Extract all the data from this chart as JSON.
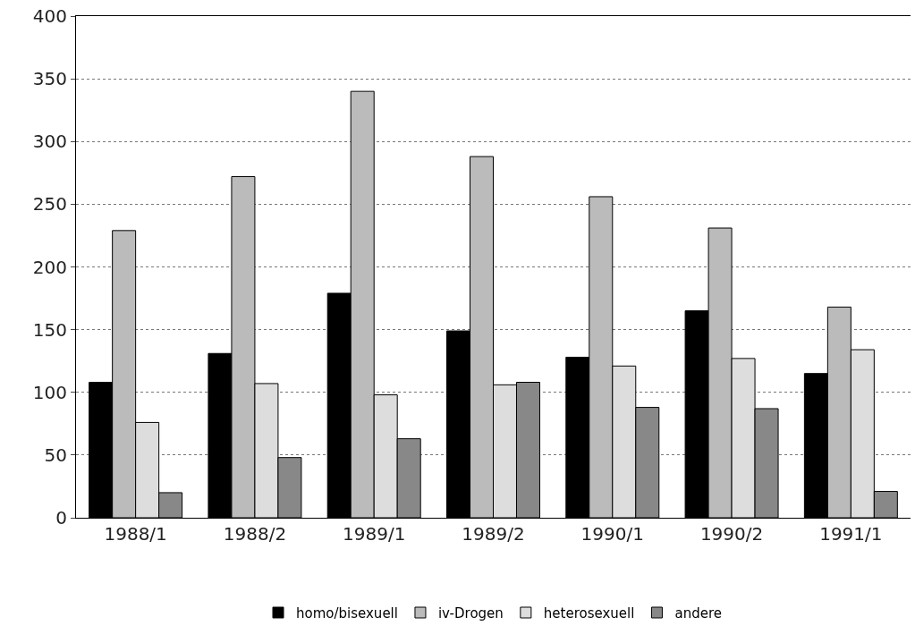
{
  "chart_data": {
    "type": "bar",
    "categories": [
      "1988/1",
      "1988/2",
      "1989/1",
      "1989/2",
      "1990/1",
      "1990/2",
      "1991/1"
    ],
    "series": [
      {
        "name": "homo/bisexuell",
        "color": "#000000",
        "values": [
          108,
          131,
          179,
          149,
          128,
          165,
          115
        ]
      },
      {
        "name": "iv-Drogen",
        "color": "#bbbbbb",
        "values": [
          229,
          272,
          340,
          288,
          256,
          231,
          168
        ]
      },
      {
        "name": "heterosexuell",
        "color": "#dddddd",
        "values": [
          76,
          107,
          98,
          106,
          121,
          127,
          134
        ]
      },
      {
        "name": "andere",
        "color": "#888888",
        "values": [
          20,
          48,
          63,
          108,
          88,
          87,
          21
        ]
      }
    ],
    "ylim": [
      0,
      400
    ],
    "yticks": [
      0,
      50,
      100,
      150,
      200,
      250,
      300,
      350,
      400
    ],
    "grid": "y",
    "legend": "bottom"
  }
}
